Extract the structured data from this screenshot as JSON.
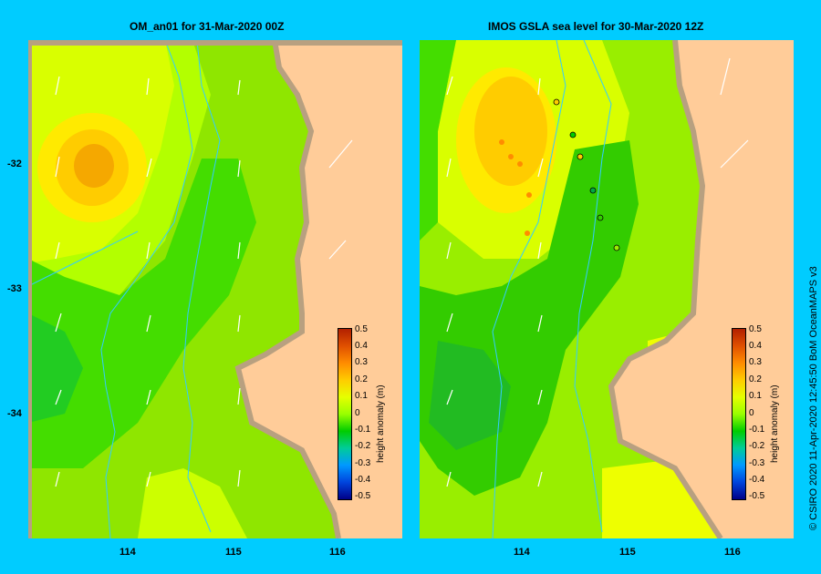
{
  "panels": [
    {
      "title": "OM_an01  for 31-Mar-2020 00Z"
    },
    {
      "title": "IMOS  GSLA sea level  for 30-Mar-2020 12Z"
    }
  ],
  "axes": {
    "y_ticks": [
      "-32",
      "-33",
      "-34"
    ],
    "x_ticks": [
      "114",
      "115",
      "116"
    ]
  },
  "colorbar": {
    "title": "height anomaly (m)",
    "labels": [
      "0.5",
      "0.4",
      "0.3",
      "0.2",
      "0.1",
      "0",
      "-0.1",
      "-0.2",
      "-0.3",
      "-0.4",
      "-0.5"
    ],
    "colors": [
      "#b22000",
      "#e05000",
      "#ff8c00",
      "#ffcc00",
      "#e6ff00",
      "#99ff00",
      "#00cc00",
      "#00cc99",
      "#0099ff",
      "#0044dd",
      "#000088"
    ]
  },
  "credit": "© CSIRO 2020   11-Apr-2020 12:45:50 BoM OceanMAPS v3"
}
